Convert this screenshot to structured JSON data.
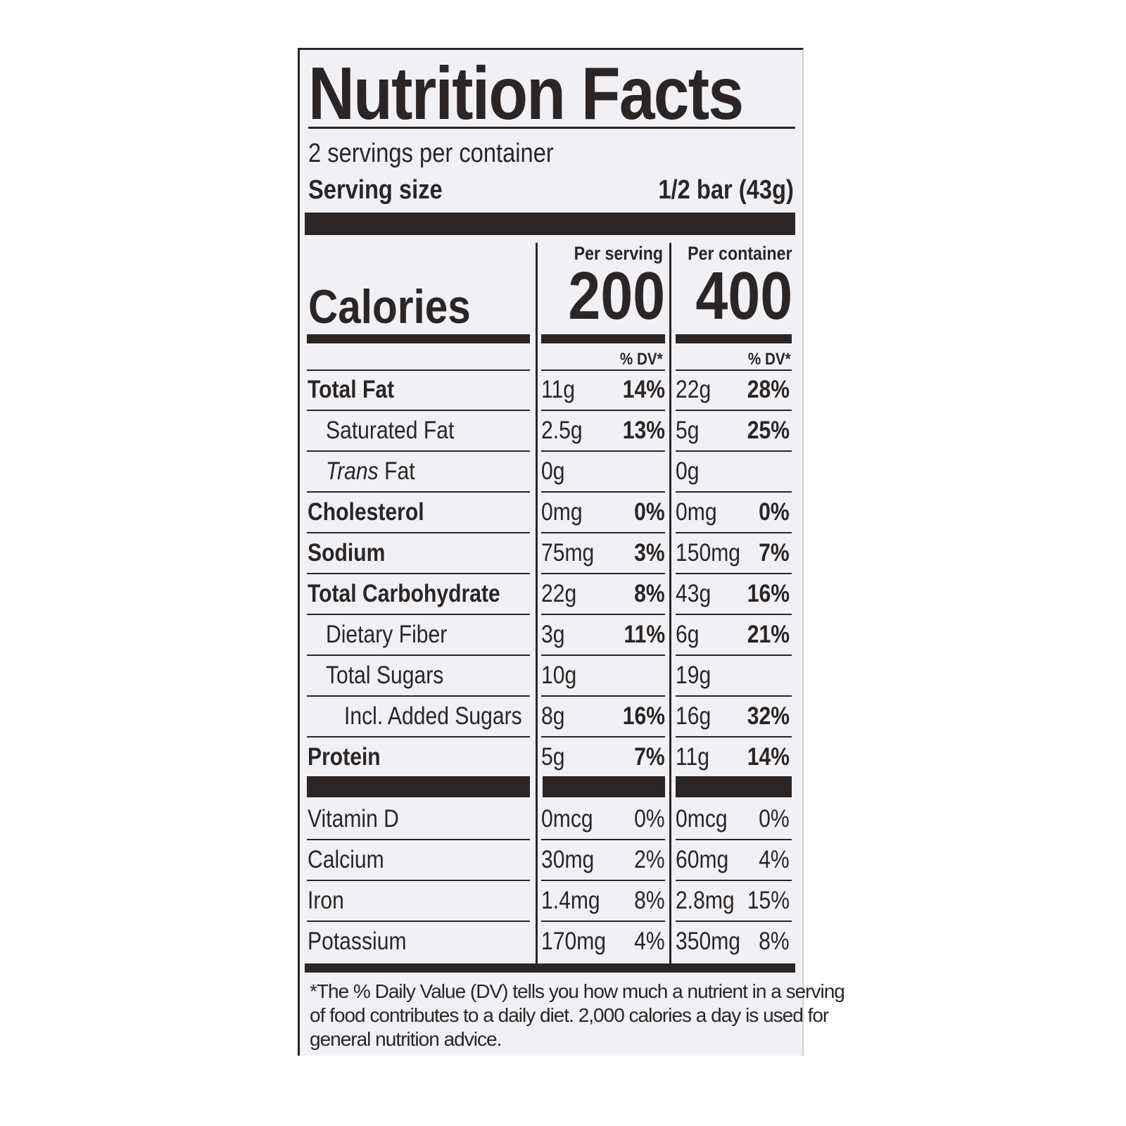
{
  "title": "Nutrition Facts",
  "servings_per_container": "2 servings per container",
  "serving_size_label": "Serving size",
  "serving_size_value": "1/2 bar (43g)",
  "columns": {
    "per_serving": "Per serving",
    "per_container": "Per container",
    "dv_label": "% DV*"
  },
  "calories": {
    "label": "Calories",
    "per_serving": "200",
    "per_container": "400"
  },
  "nutrients": [
    {
      "name": "Total Fat",
      "bold": true,
      "indent": 0,
      "serving_amount": "11g",
      "serving_dv": "14%",
      "container_amount": "22g",
      "container_dv": "28%"
    },
    {
      "name": "Saturated Fat",
      "bold": false,
      "indent": 1,
      "serving_amount": "2.5g",
      "serving_dv": "13%",
      "container_amount": "5g",
      "container_dv": "25%"
    },
    {
      "name_italic": "Trans",
      "name": " Fat",
      "bold": false,
      "indent": 1,
      "serving_amount": "0g",
      "serving_dv": "",
      "container_amount": "0g",
      "container_dv": ""
    },
    {
      "name": "Cholesterol",
      "bold": true,
      "indent": 0,
      "serving_amount": "0mg",
      "serving_dv": "0%",
      "container_amount": "0mg",
      "container_dv": "0%"
    },
    {
      "name": "Sodium",
      "bold": true,
      "indent": 0,
      "serving_amount": "75mg",
      "serving_dv": "3%",
      "container_amount": "150mg",
      "container_dv": "7%"
    },
    {
      "name": "Total Carbohydrate",
      "bold": true,
      "indent": 0,
      "serving_amount": "22g",
      "serving_dv": "8%",
      "container_amount": "43g",
      "container_dv": "16%"
    },
    {
      "name": "Dietary Fiber",
      "bold": false,
      "indent": 1,
      "serving_amount": "3g",
      "serving_dv": "11%",
      "container_amount": "6g",
      "container_dv": "21%"
    },
    {
      "name": "Total Sugars",
      "bold": false,
      "indent": 1,
      "serving_amount": "10g",
      "serving_dv": "",
      "container_amount": "19g",
      "container_dv": ""
    },
    {
      "name": "Incl. Added Sugars",
      "bold": false,
      "indent": 2,
      "serving_amount": "8g",
      "serving_dv": "16%",
      "container_amount": "16g",
      "container_dv": "32%"
    },
    {
      "name": "Protein",
      "bold": true,
      "indent": 0,
      "serving_amount": "5g",
      "serving_dv": "7%",
      "container_amount": "11g",
      "container_dv": "14%"
    }
  ],
  "vitamins": [
    {
      "name": "Vitamin D",
      "serving_amount": "0mcg",
      "serving_dv": "0%",
      "container_amount": "0mcg",
      "container_dv": "0%"
    },
    {
      "name": "Calcium",
      "serving_amount": "30mg",
      "serving_dv": "2%",
      "container_amount": "60mg",
      "container_dv": "4%"
    },
    {
      "name": "Iron",
      "serving_amount": "1.4mg",
      "serving_dv": "8%",
      "container_amount": "2.8mg",
      "container_dv": "15%"
    },
    {
      "name": "Potassium",
      "serving_amount": "170mg",
      "serving_dv": "4%",
      "container_amount": "350mg",
      "container_dv": "8%"
    }
  ],
  "footnote": "*The % Daily Value (DV) tells you how much a nutrient in a serving of food contributes to a daily diet. 2,000 calories a day is used for general nutrition advice."
}
